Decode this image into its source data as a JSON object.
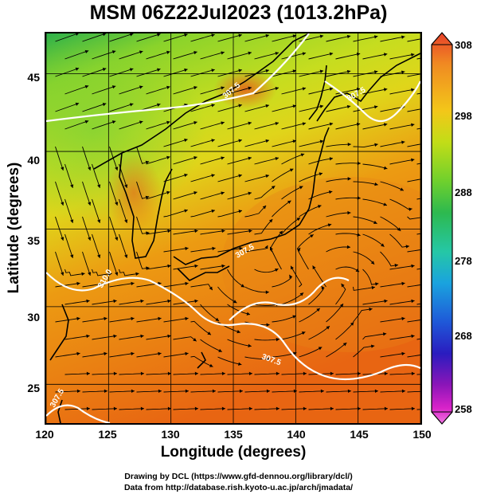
{
  "title": "MSM 06Z22Jul2023 (1013.2hPa)",
  "map": {
    "x_ticks": [
      "120",
      "125",
      "130",
      "135",
      "140",
      "145",
      "150"
    ],
    "y_ticks": [
      "45",
      "40",
      "35",
      "30",
      "25"
    ],
    "x_axis_label": "Longitude (degrees)",
    "y_axis_label": "Latitude (degrees)",
    "lon_range": [
      120,
      150
    ],
    "lat_range": [
      22.5,
      47.6
    ],
    "contour_labels": [
      "307.5",
      "307.5",
      "310.0",
      "307.5",
      "307.5",
      "307.5"
    ],
    "field_colors": [
      "#2db14a",
      "#8ad32b",
      "#c6dd1f",
      "#e0d51a",
      "#ec9b12",
      "#e86512"
    ]
  },
  "colorbar": {
    "ticks": [
      "308",
      "298",
      "288",
      "278",
      "268",
      "258"
    ],
    "colors": [
      "#e8412a",
      "#f08a22",
      "#f3c719",
      "#c2dd17",
      "#6fd02d",
      "#2db94f",
      "#25c7a6",
      "#1aa3de",
      "#1f58d8",
      "#2a1cbf",
      "#8b15b8",
      "#d923c9",
      "#f07ae3"
    ]
  },
  "credits": {
    "line1": "Drawing by DCL (https://www.gfd-dennou.org/library/dcl/)",
    "line2": "Data from http://database.rish.kyoto-u.ac.jp/arch/jmadata/"
  }
}
